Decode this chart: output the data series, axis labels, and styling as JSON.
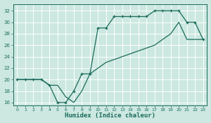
{
  "xlabel": "Humidex (Indice chaleur)",
  "bg_color": "#cce8e0",
  "line_color": "#1a6b5a",
  "grid_color": "#ffffff",
  "xlim": [
    -0.5,
    23.5
  ],
  "ylim": [
    15.5,
    33.2
  ],
  "xticks": [
    0,
    1,
    2,
    3,
    4,
    5,
    6,
    7,
    8,
    9,
    10,
    11,
    12,
    13,
    14,
    15,
    16,
    17,
    18,
    19,
    20,
    21,
    22,
    23
  ],
  "yticks": [
    16,
    18,
    20,
    22,
    24,
    26,
    28,
    30,
    32
  ],
  "line1_x": [
    0,
    1,
    2,
    3,
    4,
    5,
    6,
    7,
    8,
    9,
    10,
    11,
    12,
    13,
    14,
    15,
    16,
    17,
    18,
    19,
    20,
    21,
    22,
    23
  ],
  "line1_y": [
    20,
    20,
    20,
    20,
    19,
    16,
    16,
    18,
    21,
    21,
    29,
    29,
    31,
    31,
    31,
    31,
    31,
    32,
    32,
    32,
    32,
    30,
    30,
    27
  ],
  "line2_x": [
    0,
    2,
    3,
    4,
    5,
    6,
    7,
    8,
    9,
    10,
    11,
    13,
    15,
    17,
    18,
    19,
    20,
    21,
    22,
    23
  ],
  "line2_y": [
    20,
    20,
    20,
    19,
    19,
    17,
    16,
    18,
    21,
    22,
    23,
    24,
    25,
    26,
    27,
    28,
    30,
    27,
    27,
    27
  ]
}
